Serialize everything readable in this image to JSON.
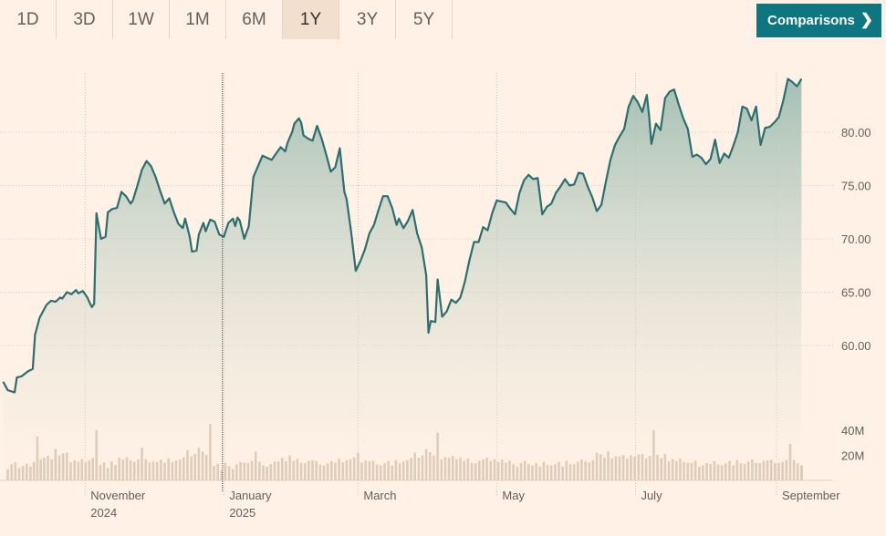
{
  "range_tabs": [
    "1D",
    "3D",
    "1W",
    "1M",
    "6M",
    "1Y",
    "3Y",
    "5Y"
  ],
  "active_tab": "1Y",
  "comparisons_label": "Comparisons",
  "colors": {
    "background": "#fff1e5",
    "line": "#2c6f6e",
    "area_top": "#9fbdb2",
    "volume": "#d6c2ac",
    "button": "#0d7680"
  },
  "chart_data": {
    "type": "area",
    "y_axis": {
      "ticks": [
        60,
        65,
        70,
        75,
        80
      ],
      "tick_labels": [
        "60.00",
        "65.00",
        "70.00",
        "75.00",
        "80.00"
      ],
      "position": "right"
    },
    "volume_axis": {
      "ticks": [
        20000000,
        40000000
      ],
      "tick_labels": [
        "20M",
        "40M"
      ]
    },
    "x_axis": {
      "labels": [
        {
          "date": "2024-11-01",
          "line1": "November",
          "line2": "2024"
        },
        {
          "date": "2025-01-01",
          "line1": "January",
          "line2": "2025"
        },
        {
          "date": "2025-03-01",
          "line1": "March",
          "line2": ""
        },
        {
          "date": "2025-05-01",
          "line1": "May",
          "line2": ""
        },
        {
          "date": "2025-07-01",
          "line1": "July",
          "line2": ""
        },
        {
          "date": "2025-09-01",
          "line1": "September",
          "line2": ""
        }
      ]
    },
    "grid": true,
    "price_series": [
      [
        "2024-09-26",
        56.6
      ],
      [
        "2024-09-28",
        55.8
      ],
      [
        "2024-10-01",
        55.6
      ],
      [
        "2024-10-02",
        57.0
      ],
      [
        "2024-10-04",
        57.1
      ],
      [
        "2024-10-07",
        57.6
      ],
      [
        "2024-10-09",
        57.8
      ],
      [
        "2024-10-10",
        61.0
      ],
      [
        "2024-10-12",
        62.6
      ],
      [
        "2024-10-15",
        63.8
      ],
      [
        "2024-10-17",
        64.2
      ],
      [
        "2024-10-19",
        64.1
      ],
      [
        "2024-10-21",
        64.5
      ],
      [
        "2024-10-22",
        64.4
      ],
      [
        "2024-10-24",
        65.0
      ],
      [
        "2024-10-26",
        64.8
      ],
      [
        "2024-10-28",
        65.2
      ],
      [
        "2024-10-29",
        64.9
      ],
      [
        "2024-10-31",
        65.1
      ],
      [
        "2024-11-02",
        64.5
      ],
      [
        "2024-11-03",
        64.0
      ],
      [
        "2024-11-04",
        63.6
      ],
      [
        "2024-11-05",
        63.9
      ],
      [
        "2024-11-06",
        72.4
      ],
      [
        "2024-11-08",
        70.0
      ],
      [
        "2024-11-10",
        70.2
      ],
      [
        "2024-11-11",
        72.5
      ],
      [
        "2024-11-13",
        72.8
      ],
      [
        "2024-11-15",
        72.9
      ],
      [
        "2024-11-17",
        74.4
      ],
      [
        "2024-11-19",
        74.0
      ],
      [
        "2024-11-21",
        73.3
      ],
      [
        "2024-11-22",
        73.6
      ],
      [
        "2024-11-24",
        75.0
      ],
      [
        "2024-11-26",
        76.5
      ],
      [
        "2024-11-28",
        77.3
      ],
      [
        "2024-11-30",
        76.8
      ],
      [
        "2024-12-02",
        75.8
      ],
      [
        "2024-12-04",
        74.5
      ],
      [
        "2024-12-06",
        73.3
      ],
      [
        "2024-12-08",
        73.8
      ],
      [
        "2024-12-10",
        72.5
      ],
      [
        "2024-12-12",
        71.4
      ],
      [
        "2024-12-14",
        71.0
      ],
      [
        "2024-12-15",
        71.9
      ],
      [
        "2024-12-17",
        70.2
      ],
      [
        "2024-12-18",
        68.8
      ],
      [
        "2024-12-20",
        68.9
      ],
      [
        "2024-12-21",
        70.4
      ],
      [
        "2024-12-23",
        71.5
      ],
      [
        "2024-12-24",
        70.7
      ],
      [
        "2024-12-26",
        71.8
      ],
      [
        "2024-12-28",
        71.6
      ],
      [
        "2024-12-30",
        70.4
      ],
      [
        "2025-01-01",
        70.2
      ],
      [
        "2025-01-03",
        71.5
      ],
      [
        "2025-01-05",
        71.9
      ],
      [
        "2025-01-06",
        71.2
      ],
      [
        "2025-01-07",
        72.0
      ],
      [
        "2025-01-08",
        71.7
      ],
      [
        "2025-01-10",
        70.0
      ],
      [
        "2025-01-12",
        71.2
      ],
      [
        "2025-01-14",
        75.8
      ],
      [
        "2025-01-16",
        76.8
      ],
      [
        "2025-01-18",
        77.8
      ],
      [
        "2025-01-20",
        77.6
      ],
      [
        "2025-01-22",
        77.4
      ],
      [
        "2025-01-24",
        78.0
      ],
      [
        "2025-01-26",
        78.6
      ],
      [
        "2025-01-28",
        78.2
      ],
      [
        "2025-01-29",
        79.0
      ],
      [
        "2025-01-31",
        80.0
      ],
      [
        "2025-02-01",
        80.8
      ],
      [
        "2025-02-03",
        81.3
      ],
      [
        "2025-02-04",
        80.9
      ],
      [
        "2025-02-05",
        79.7
      ],
      [
        "2025-02-07",
        79.4
      ],
      [
        "2025-02-09",
        79.2
      ],
      [
        "2025-02-11",
        80.6
      ],
      [
        "2025-02-13",
        79.4
      ],
      [
        "2025-02-15",
        77.9
      ],
      [
        "2025-02-17",
        76.3
      ],
      [
        "2025-02-19",
        76.7
      ],
      [
        "2025-02-21",
        78.5
      ],
      [
        "2025-02-23",
        74.4
      ],
      [
        "2025-02-24",
        73.7
      ],
      [
        "2025-02-26",
        70.6
      ],
      [
        "2025-02-28",
        67.0
      ],
      [
        "2025-03-02",
        67.9
      ],
      [
        "2025-03-04",
        69.0
      ],
      [
        "2025-03-06",
        70.5
      ],
      [
        "2025-03-08",
        71.3
      ],
      [
        "2025-03-10",
        72.7
      ],
      [
        "2025-03-12",
        74.0
      ],
      [
        "2025-03-14",
        74.0
      ],
      [
        "2025-03-16",
        72.9
      ],
      [
        "2025-03-18",
        71.3
      ],
      [
        "2025-03-19",
        71.9
      ],
      [
        "2025-03-21",
        71.0
      ],
      [
        "2025-03-23",
        71.7
      ],
      [
        "2025-03-25",
        72.7
      ],
      [
        "2025-03-27",
        70.5
      ],
      [
        "2025-03-29",
        69.2
      ],
      [
        "2025-03-31",
        66.6
      ],
      [
        "2025-04-01",
        61.2
      ],
      [
        "2025-04-02",
        62.3
      ],
      [
        "2025-04-04",
        62.2
      ],
      [
        "2025-04-05",
        66.2
      ],
      [
        "2025-04-07",
        62.7
      ],
      [
        "2025-04-09",
        63.2
      ],
      [
        "2025-04-11",
        64.3
      ],
      [
        "2025-04-13",
        64.0
      ],
      [
        "2025-04-15",
        64.5
      ],
      [
        "2025-04-17",
        66.0
      ],
      [
        "2025-04-19",
        68.0
      ],
      [
        "2025-04-21",
        69.7
      ],
      [
        "2025-04-23",
        69.7
      ],
      [
        "2025-04-25",
        71.1
      ],
      [
        "2025-04-27",
        70.8
      ],
      [
        "2025-04-29",
        72.4
      ],
      [
        "2025-05-01",
        73.6
      ],
      [
        "2025-05-03",
        73.5
      ],
      [
        "2025-05-05",
        73.4
      ],
      [
        "2025-05-07",
        72.8
      ],
      [
        "2025-05-09",
        72.3
      ],
      [
        "2025-05-11",
        74.3
      ],
      [
        "2025-05-13",
        75.5
      ],
      [
        "2025-05-15",
        76.0
      ],
      [
        "2025-05-17",
        75.6
      ],
      [
        "2025-05-19",
        75.7
      ],
      [
        "2025-05-21",
        72.3
      ],
      [
        "2025-05-23",
        73.0
      ],
      [
        "2025-05-25",
        73.3
      ],
      [
        "2025-05-27",
        74.3
      ],
      [
        "2025-05-29",
        74.9
      ],
      [
        "2025-05-31",
        75.6
      ],
      [
        "2025-06-02",
        75.0
      ],
      [
        "2025-06-04",
        75.1
      ],
      [
        "2025-06-06",
        76.2
      ],
      [
        "2025-06-08",
        76.1
      ],
      [
        "2025-06-10",
        74.9
      ],
      [
        "2025-06-12",
        73.9
      ],
      [
        "2025-06-14",
        72.6
      ],
      [
        "2025-06-16",
        73.2
      ],
      [
        "2025-06-18",
        75.4
      ],
      [
        "2025-06-20",
        77.4
      ],
      [
        "2025-06-22",
        78.8
      ],
      [
        "2025-06-24",
        79.6
      ],
      [
        "2025-06-26",
        80.3
      ],
      [
        "2025-06-28",
        82.4
      ],
      [
        "2025-06-30",
        83.4
      ],
      [
        "2025-07-02",
        82.8
      ],
      [
        "2025-07-04",
        81.9
      ],
      [
        "2025-07-06",
        83.5
      ],
      [
        "2025-07-07",
        81.5
      ],
      [
        "2025-07-08",
        78.9
      ],
      [
        "2025-07-10",
        80.8
      ],
      [
        "2025-07-12",
        80.2
      ],
      [
        "2025-07-14",
        83.2
      ],
      [
        "2025-07-16",
        83.8
      ],
      [
        "2025-07-18",
        84.0
      ],
      [
        "2025-07-20",
        82.6
      ],
      [
        "2025-07-22",
        81.3
      ],
      [
        "2025-07-24",
        80.3
      ],
      [
        "2025-07-26",
        77.7
      ],
      [
        "2025-07-28",
        77.9
      ],
      [
        "2025-07-30",
        77.6
      ],
      [
        "2025-08-01",
        77.0
      ],
      [
        "2025-08-03",
        77.5
      ],
      [
        "2025-08-05",
        79.3
      ],
      [
        "2025-08-07",
        77.1
      ],
      [
        "2025-08-09",
        78.0
      ],
      [
        "2025-08-11",
        77.6
      ],
      [
        "2025-08-13",
        78.7
      ],
      [
        "2025-08-15",
        80.0
      ],
      [
        "2025-08-17",
        82.4
      ],
      [
        "2025-08-19",
        82.2
      ],
      [
        "2025-08-21",
        81.1
      ],
      [
        "2025-08-23",
        82.4
      ],
      [
        "2025-08-25",
        78.8
      ],
      [
        "2025-08-27",
        80.4
      ],
      [
        "2025-08-29",
        80.5
      ],
      [
        "2025-08-31",
        80.9
      ],
      [
        "2025-09-02",
        81.4
      ],
      [
        "2025-09-04",
        83.0
      ],
      [
        "2025-09-06",
        85.0
      ],
      [
        "2025-09-08",
        84.7
      ],
      [
        "2025-09-10",
        84.3
      ],
      [
        "2025-09-12",
        85.0
      ]
    ],
    "volume_series_millions": [
      [
        "2024-09-28",
        9
      ],
      [
        "2024-10-03",
        10
      ],
      [
        "2024-10-08",
        11
      ],
      [
        "2024-10-11",
        35
      ],
      [
        "2024-10-14",
        18
      ],
      [
        "2024-10-19",
        25
      ],
      [
        "2024-10-24",
        22
      ],
      [
        "2024-10-29",
        15
      ],
      [
        "2024-11-06",
        40
      ],
      [
        "2024-11-11",
        10
      ],
      [
        "2024-11-16",
        18
      ],
      [
        "2024-11-21",
        16
      ],
      [
        "2024-11-26",
        26
      ],
      [
        "2024-12-01",
        15
      ],
      [
        "2024-12-06",
        14
      ],
      [
        "2024-12-11",
        16
      ],
      [
        "2024-12-16",
        24
      ],
      [
        "2024-12-21",
        26
      ],
      [
        "2024-12-26",
        45
      ],
      [
        "2024-12-31",
        8
      ],
      [
        "2025-01-05",
        9
      ],
      [
        "2025-01-10",
        14
      ],
      [
        "2025-01-15",
        23
      ],
      [
        "2025-01-20",
        11
      ],
      [
        "2025-01-25",
        15
      ],
      [
        "2025-01-30",
        20
      ],
      [
        "2025-02-04",
        14
      ],
      [
        "2025-02-09",
        16
      ],
      [
        "2025-02-14",
        12
      ],
      [
        "2025-02-19",
        14
      ],
      [
        "2025-02-24",
        16
      ],
      [
        "2025-03-01",
        22
      ],
      [
        "2025-03-06",
        15
      ],
      [
        "2025-03-11",
        12
      ],
      [
        "2025-03-16",
        12
      ],
      [
        "2025-03-21",
        15
      ],
      [
        "2025-03-26",
        22
      ],
      [
        "2025-03-31",
        25
      ],
      [
        "2025-04-05",
        38
      ],
      [
        "2025-04-10",
        18
      ],
      [
        "2025-04-15",
        18
      ],
      [
        "2025-04-20",
        14
      ],
      [
        "2025-04-25",
        17
      ],
      [
        "2025-04-30",
        17
      ],
      [
        "2025-05-05",
        14
      ],
      [
        "2025-05-10",
        11
      ],
      [
        "2025-05-15",
        13
      ],
      [
        "2025-05-20",
        11
      ],
      [
        "2025-05-25",
        12
      ],
      [
        "2025-05-30",
        11
      ],
      [
        "2025-06-04",
        13
      ],
      [
        "2025-06-09",
        15
      ],
      [
        "2025-06-14",
        22
      ],
      [
        "2025-06-19",
        23
      ],
      [
        "2025-06-24",
        19
      ],
      [
        "2025-06-29",
        20
      ],
      [
        "2025-07-04",
        21
      ],
      [
        "2025-07-09",
        40
      ],
      [
        "2025-07-14",
        21
      ],
      [
        "2025-07-19",
        15
      ],
      [
        "2025-07-24",
        14
      ],
      [
        "2025-07-29",
        11
      ],
      [
        "2025-08-03",
        13
      ],
      [
        "2025-08-08",
        12
      ],
      [
        "2025-08-13",
        12
      ],
      [
        "2025-08-18",
        13
      ],
      [
        "2025-08-23",
        14
      ],
      [
        "2025-08-28",
        16
      ],
      [
        "2025-09-02",
        14
      ],
      [
        "2025-09-07",
        29
      ],
      [
        "2025-09-12",
        12
      ]
    ]
  }
}
